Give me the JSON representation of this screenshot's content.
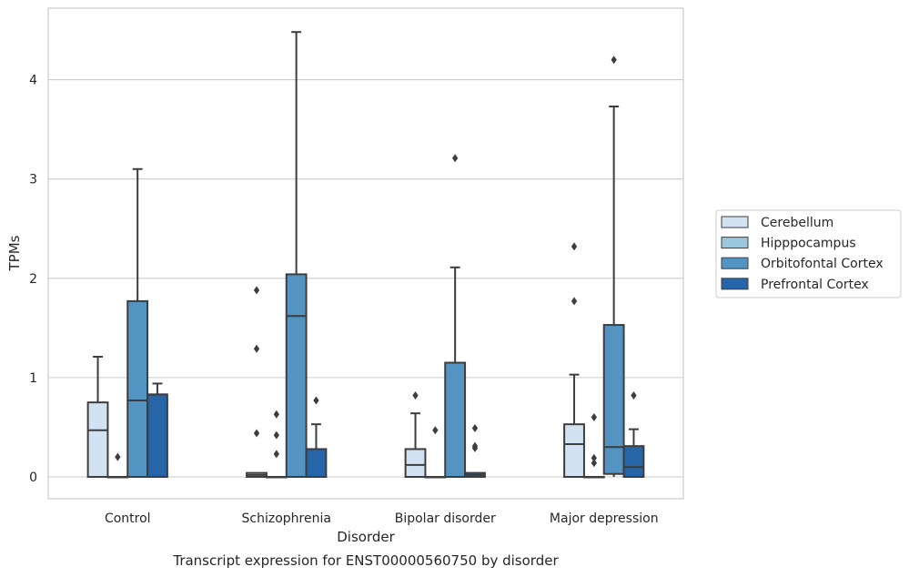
{
  "chart_data": {
    "type": "box",
    "title": "Transcript expression for ENST00000560750 by disorder",
    "xlabel": "Disorder",
    "ylabel": "TPMs",
    "ylim": [
      -0.22,
      4.72
    ],
    "yticks": [
      0,
      1,
      2,
      3,
      4
    ],
    "grid": "horizontal",
    "legend_position": "right",
    "categories": [
      "Control",
      "Schizophrenia",
      "Bipolar disorder",
      "Major depression"
    ],
    "series": [
      {
        "name": "Cerebellum",
        "color": "#d2e2f2",
        "boxes": [
          {
            "q1": 0.0,
            "median": 0.47,
            "q3": 0.75,
            "whislo": 0.0,
            "whishi": 1.21,
            "fliers": []
          },
          {
            "q1": 0.0,
            "median": 0.02,
            "q3": 0.04,
            "whislo": 0.0,
            "whishi": 0.04,
            "fliers": [
              0.44,
              1.29,
              1.88
            ]
          },
          {
            "q1": 0.0,
            "median": 0.12,
            "q3": 0.28,
            "whislo": 0.0,
            "whishi": 0.64,
            "fliers": [
              0.82
            ]
          },
          {
            "q1": 0.0,
            "median": 0.33,
            "q3": 0.53,
            "whislo": 0.0,
            "whishi": 1.03,
            "fliers": [
              1.77,
              2.32
            ]
          }
        ]
      },
      {
        "name": "Hipppocampus",
        "color": "#9ac7e0",
        "boxes": [
          {
            "q1": 0.0,
            "median": 0.0,
            "q3": 0.0,
            "whislo": 0.0,
            "whishi": 0.0,
            "fliers": [
              0.2
            ]
          },
          {
            "q1": 0.0,
            "median": 0.0,
            "q3": 0.0,
            "whislo": 0.0,
            "whishi": 0.0,
            "fliers": [
              0.23,
              0.42,
              0.63
            ]
          },
          {
            "q1": 0.0,
            "median": 0.0,
            "q3": 0.0,
            "whislo": 0.0,
            "whishi": 0.0,
            "fliers": [
              0.47
            ]
          },
          {
            "q1": 0.0,
            "median": 0.0,
            "q3": 0.0,
            "whislo": 0.0,
            "whishi": 0.0,
            "fliers": [
              0.14,
              0.19,
              0.6
            ]
          }
        ]
      },
      {
        "name": "Orbitofontal Cortex",
        "color": "#5394c2",
        "boxes": [
          {
            "q1": 0.0,
            "median": 0.77,
            "q3": 1.77,
            "whislo": 0.0,
            "whishi": 3.1,
            "fliers": []
          },
          {
            "q1": 0.0,
            "median": 1.62,
            "q3": 2.04,
            "whislo": 0.0,
            "whishi": 4.48,
            "fliers": []
          },
          {
            "q1": 0.0,
            "median": 0.0,
            "q3": 1.15,
            "whislo": 0.0,
            "whishi": 2.11,
            "fliers": [
              3.21
            ]
          },
          {
            "q1": 0.03,
            "median": 0.3,
            "q3": 1.53,
            "whislo": 0.0,
            "whishi": 3.73,
            "fliers": [
              4.2
            ]
          }
        ]
      },
      {
        "name": "Prefrontal Cortex",
        "color": "#2565a8",
        "boxes": [
          {
            "q1": 0.0,
            "median": 0.83,
            "q3": 0.83,
            "whislo": 0.0,
            "whishi": 0.94,
            "fliers": []
          },
          {
            "q1": 0.0,
            "median": 0.0,
            "q3": 0.28,
            "whislo": 0.0,
            "whishi": 0.53,
            "fliers": [
              0.77
            ]
          },
          {
            "q1": 0.0,
            "median": 0.02,
            "q3": 0.04,
            "whislo": 0.0,
            "whishi": 0.04,
            "fliers": [
              0.29,
              0.31,
              0.49
            ]
          },
          {
            "q1": 0.0,
            "median": 0.1,
            "q3": 0.31,
            "whislo": 0.0,
            "whishi": 0.48,
            "fliers": [
              0.82
            ]
          }
        ]
      }
    ]
  }
}
